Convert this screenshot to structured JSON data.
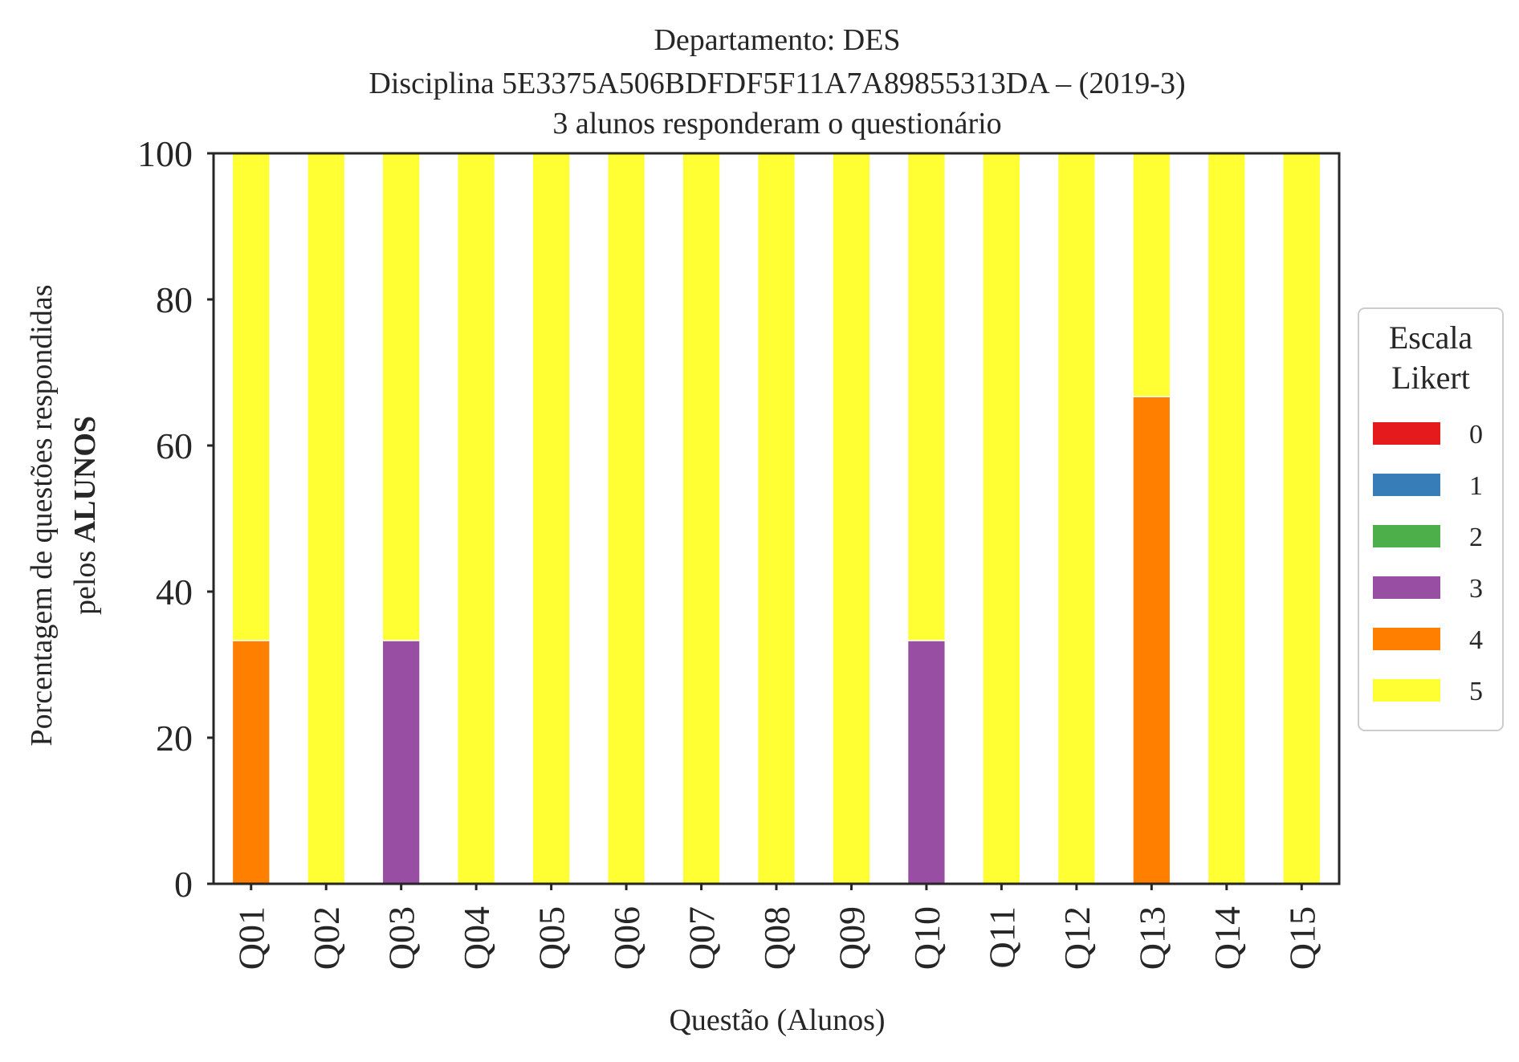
{
  "chart_data": {
    "type": "bar",
    "stacked": true,
    "title_lines": [
      "Departamento: DES",
      "Disciplina 5E3375A506BDFDF5F11A7A89855313DA – (2019-3)",
      "3 alunos responderam o questionário"
    ],
    "xlabel": "Questão (Alunos)",
    "ylabel_line1": "Porcentagem de questões respondidas",
    "ylabel_line2_prefix": "pelos ",
    "ylabel_line2_bold": "ALUNOS",
    "ylim": [
      0,
      100
    ],
    "yticks": [
      "0",
      "20",
      "40",
      "60",
      "80",
      "100"
    ],
    "grid": false,
    "categories": [
      "Q01",
      "Q02",
      "Q03",
      "Q04",
      "Q05",
      "Q06",
      "Q07",
      "Q08",
      "Q09",
      "Q10",
      "Q11",
      "Q12",
      "Q13",
      "Q14",
      "Q15"
    ],
    "series": [
      {
        "name": "0",
        "color": "#e41a1c",
        "values": [
          0,
          0,
          0,
          0,
          0,
          0,
          0,
          0,
          0,
          0,
          0,
          0,
          0,
          0,
          0
        ]
      },
      {
        "name": "1",
        "color": "#377eb8",
        "values": [
          0,
          0,
          0,
          0,
          0,
          0,
          0,
          0,
          0,
          0,
          0,
          0,
          0,
          0,
          0
        ]
      },
      {
        "name": "2",
        "color": "#4daf4a",
        "values": [
          0,
          0,
          0,
          0,
          0,
          0,
          0,
          0,
          0,
          0,
          0,
          0,
          0,
          0,
          0
        ]
      },
      {
        "name": "3",
        "color": "#984ea3",
        "values": [
          0,
          0,
          33.3,
          0,
          0,
          0,
          0,
          0,
          0,
          33.3,
          0,
          0,
          0,
          0,
          0
        ]
      },
      {
        "name": "4",
        "color": "#ff7f00",
        "values": [
          33.3,
          0,
          0,
          0,
          0,
          0,
          0,
          0,
          0,
          0,
          0,
          0,
          66.7,
          0,
          0
        ]
      },
      {
        "name": "5",
        "color": "#ffff33",
        "values": [
          66.7,
          100,
          66.7,
          100,
          100,
          100,
          100,
          100,
          100,
          66.7,
          100,
          100,
          33.3,
          100,
          100
        ]
      }
    ],
    "legend": {
      "title_lines": [
        "Escala",
        "Likert"
      ],
      "position": "right"
    }
  }
}
